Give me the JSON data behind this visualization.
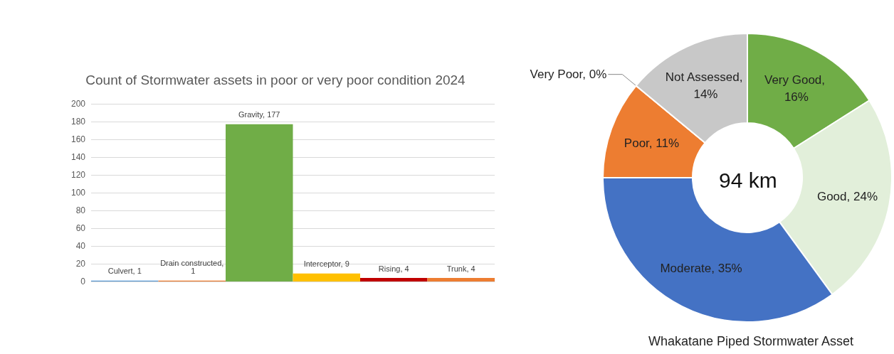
{
  "chart_data": [
    {
      "type": "bar",
      "title": "Count of Stormwater assets in poor or very poor condition 2024",
      "categories": [
        null,
        null,
        null,
        null,
        null,
        null
      ],
      "values": [
        1,
        1,
        177,
        9,
        4,
        4
      ],
      "value_labels": [
        "Culvert, 1",
        "Drain constructed, 1",
        "Gravity, 177",
        "Interceptor, 9",
        "Rising, 4",
        "Trunk, 4"
      ],
      "colors": [
        "#5b9bd5",
        "#ed7d31",
        "#70ad47",
        "#ffc000",
        "#c00000",
        "#ed7d31"
      ],
      "ylim": [
        0,
        200
      ],
      "yticks": [
        0,
        20,
        40,
        60,
        80,
        100,
        120,
        140,
        160,
        180,
        200
      ],
      "grid": "y",
      "tick_labels": "y"
    },
    {
      "type": "donut",
      "title": "Whakatane Piped Stormwater Asset",
      "categories": [
        null,
        null,
        null,
        null,
        null,
        null
      ],
      "values": [
        16,
        24,
        35,
        11,
        0,
        14
      ],
      "value_labels": [
        "Very Good, 16%",
        "Good, 24%",
        "Moderate, 35%",
        "Poor, 11%",
        "Very Poor, 0%",
        "Not Assessed, 14%"
      ],
      "colors": [
        "#70ad47",
        "#e2efda",
        "#4472c4",
        "#ed7d31",
        "#c00000",
        "#c8c8c8"
      ],
      "annotations": [
        "94 km"
      ]
    }
  ]
}
